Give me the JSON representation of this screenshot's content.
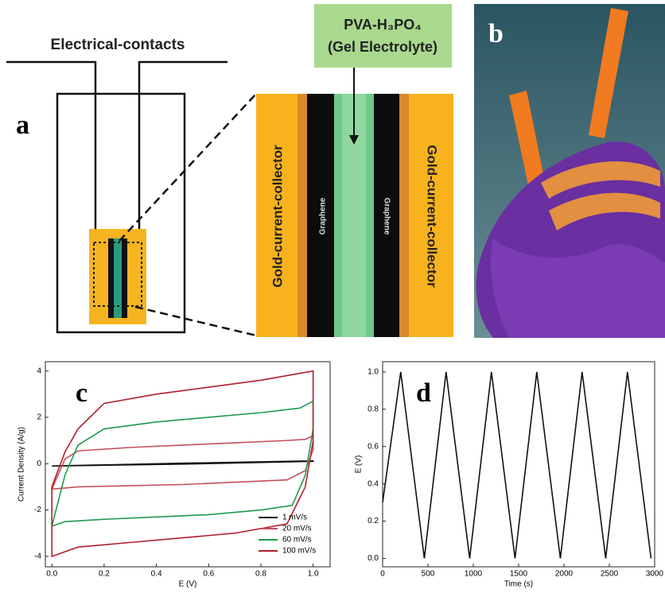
{
  "figure": {
    "panel_labels": {
      "a": "a",
      "b": "b",
      "c": "c",
      "d": "d"
    },
    "schematic": {
      "contacts": "Electrical-contacts",
      "electrolyte": "PVA-H₃PO₄",
      "electrolyte_note": "(Gel Electrolyte)",
      "collector_left": "Gold-current-collector",
      "collector_right": "Gold-current-collector",
      "graphene_left": "Graphene",
      "graphene_right": "Graphene"
    }
  },
  "chart_data": [
    {
      "type": "line",
      "xlabel": "E (V)",
      "ylabel": "Current Density (A/g)",
      "xlim": [
        -0.025,
        1.065
      ],
      "ylim": [
        -4.45,
        4.4
      ],
      "xticks": [
        {
          "value": 0,
          "label": "0.0"
        },
        0.2,
        0.4,
        0.6,
        0.8,
        {
          "value": 1,
          "label": "1.0"
        }
      ],
      "yticks": [
        -4,
        -2,
        0,
        2,
        4
      ],
      "legend": "lower right",
      "series": [
        {
          "name": "1 mV/s",
          "color": "#111111",
          "x": [
            0,
            0.5,
            1,
            1,
            0.5,
            0
          ],
          "values": [
            -0.1,
            0.02,
            0.12,
            0.1,
            -0.02,
            -0.1
          ]
        },
        {
          "name": "20 mV/s",
          "color": "#c4505e",
          "x": [
            0,
            0.05,
            0.1,
            0.3,
            0.5,
            0.7,
            0.9,
            0.97,
            1,
            1,
            0.97,
            0.9,
            0.7,
            0.5,
            0.3,
            0.1,
            0
          ],
          "values": [
            -1.1,
            0.2,
            0.55,
            0.7,
            0.8,
            0.9,
            1,
            1.05,
            1.2,
            0.6,
            -0.3,
            -0.7,
            -0.8,
            -0.9,
            -0.95,
            -1,
            -1.1
          ]
        },
        {
          "name": "60 mV/s",
          "color": "#1e9a4e",
          "x": [
            0,
            0.05,
            0.1,
            0.2,
            0.4,
            0.6,
            0.8,
            0.95,
            1,
            1,
            0.97,
            0.92,
            0.8,
            0.6,
            0.4,
            0.2,
            0.05,
            0
          ],
          "values": [
            -2.7,
            -0.5,
            0.8,
            1.5,
            1.8,
            2,
            2.2,
            2.4,
            2.7,
            1.5,
            -0.5,
            -1.8,
            -2,
            -2.2,
            -2.3,
            -2.4,
            -2.5,
            -2.7
          ]
        },
        {
          "name": "100 mV/s",
          "color": "#b0202c",
          "x": [
            0,
            0.05,
            0.1,
            0.2,
            0.4,
            0.6,
            0.8,
            0.95,
            1,
            1,
            0.97,
            0.9,
            0.7,
            0.5,
            0.3,
            0.1,
            0,
            0
          ],
          "values": [
            -1,
            0.5,
            1.5,
            2.6,
            3,
            3.3,
            3.6,
            3.9,
            4,
            1,
            -1,
            -2.6,
            -3,
            -3.2,
            -3.4,
            -3.6,
            -4,
            -1
          ]
        }
      ]
    },
    {
      "type": "line",
      "xlabel": "Time (s)",
      "ylabel": "E (V)",
      "xlim": [
        0,
        3000
      ],
      "ylim": [
        -0.045,
        1.055
      ],
      "xticks": [
        0,
        500,
        1000,
        1500,
        2000,
        2500,
        3000
      ],
      "yticks": [
        {
          "value": 0,
          "label": "0.0"
        },
        0.2,
        0.4,
        0.6,
        0.8,
        {
          "value": 1,
          "label": "1.0"
        }
      ],
      "series": [
        {
          "color": "#111111",
          "x": [
            0,
            200,
            460,
            700,
            960,
            1200,
            1460,
            1700,
            1960,
            2200,
            2460,
            2700,
            2960
          ],
          "values": [
            0.3,
            1,
            0,
            1,
            0,
            1,
            0,
            1,
            0,
            1,
            0,
            1,
            0
          ]
        }
      ]
    }
  ]
}
